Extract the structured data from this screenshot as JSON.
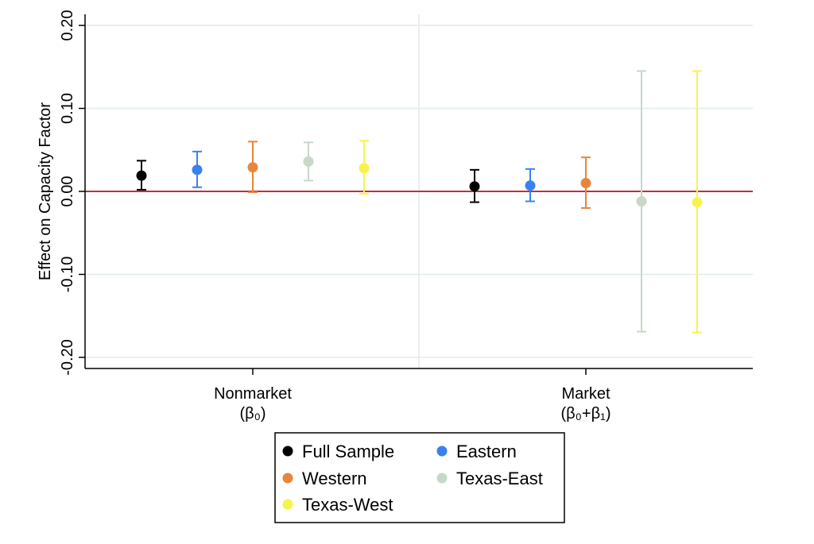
{
  "chart_data": {
    "type": "scatter",
    "subtype": "coefficient-plot-with-confidence-intervals",
    "ylabel": "Effect on Capacity Factor",
    "ylim": [
      -0.22,
      0.21
    ],
    "yticks": [
      0.2,
      0.1,
      0.0,
      -0.1,
      -0.2
    ],
    "ytick_labels": [
      "0.20",
      "0.10",
      "0.00",
      "-0.10",
      "-0.20"
    ],
    "reference_line": {
      "y": 0.0,
      "color": "#c0303a"
    },
    "grid": true,
    "groups": [
      {
        "label": "Nonmarket",
        "sublabel": "(β₀)"
      },
      {
        "label": "Market",
        "sublabel": "(β₀+β₁)"
      }
    ],
    "series": [
      {
        "name": "Full Sample",
        "color": "#000000",
        "points": [
          {
            "group": 0,
            "estimate": 0.019,
            "ci": [
              0.002,
              0.037
            ]
          },
          {
            "group": 1,
            "estimate": 0.006,
            "ci": [
              -0.013,
              0.026
            ]
          }
        ]
      },
      {
        "name": "Eastern",
        "color": "#3a81f0",
        "points": [
          {
            "group": 0,
            "estimate": 0.026,
            "ci": [
              0.005,
              0.048
            ]
          },
          {
            "group": 1,
            "estimate": 0.007,
            "ci": [
              -0.012,
              0.027
            ]
          }
        ]
      },
      {
        "name": "Western",
        "color": "#e8853a",
        "points": [
          {
            "group": 0,
            "estimate": 0.029,
            "ci": [
              -0.001,
              0.06
            ]
          },
          {
            "group": 1,
            "estimate": 0.01,
            "ci": [
              -0.02,
              0.041
            ]
          }
        ]
      },
      {
        "name": "Texas-East",
        "color": "#c7d8c7",
        "points": [
          {
            "group": 0,
            "estimate": 0.036,
            "ci": [
              0.013,
              0.059
            ]
          },
          {
            "group": 1,
            "estimate": -0.012,
            "ci": [
              -0.169,
              0.145
            ]
          }
        ]
      },
      {
        "name": "Texas-West",
        "color": "#f7f34d",
        "points": [
          {
            "group": 0,
            "estimate": 0.028,
            "ci": [
              -0.003,
              0.061
            ]
          },
          {
            "group": 1,
            "estimate": -0.013,
            "ci": [
              -0.17,
              0.145
            ]
          }
        ]
      }
    ],
    "legend": {
      "placement": "bottom-center",
      "columns": 2,
      "entries": [
        "Full Sample",
        "Eastern",
        "Western",
        "Texas-East",
        "Texas-West"
      ]
    }
  }
}
